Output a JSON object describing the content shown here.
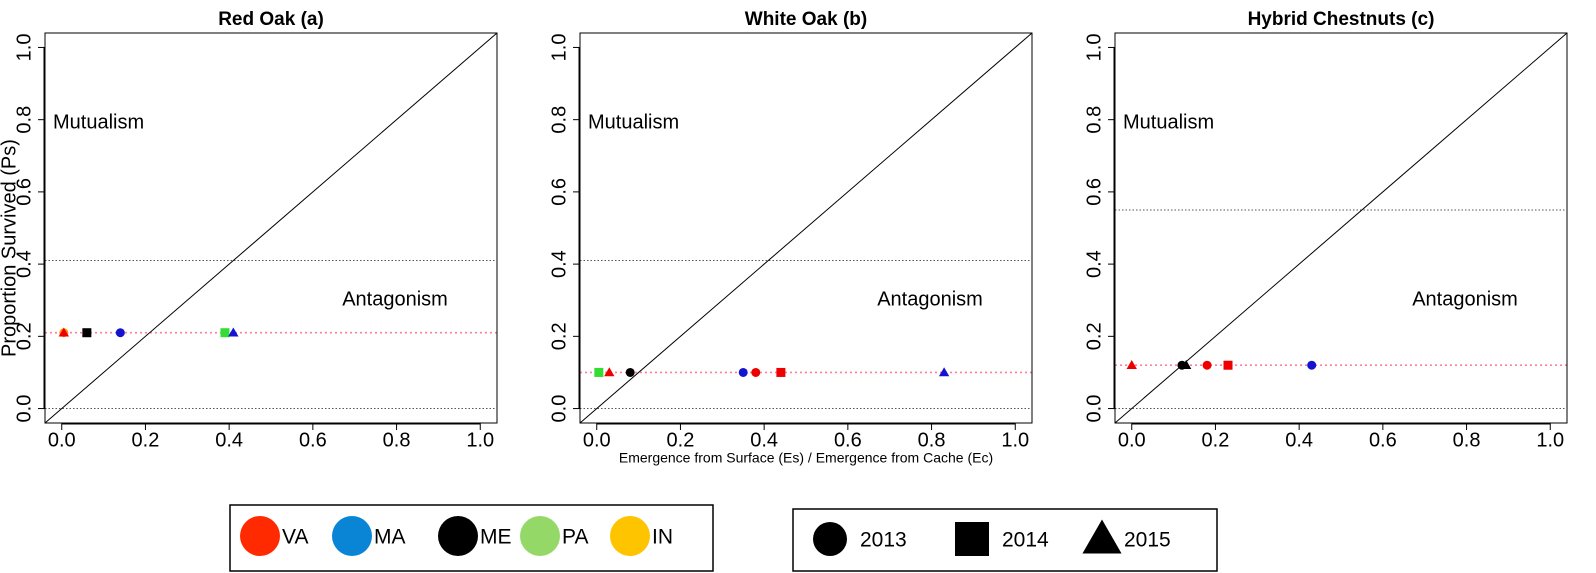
{
  "chart_data": [
    {
      "type": "scatter",
      "title": "Red Oak (a)",
      "ylabel": "Proportion Survived (Ps)",
      "annotations": [
        "Mutualism",
        "Antagonism"
      ],
      "xlim": [
        -0.04,
        1.04
      ],
      "ylim": [
        -0.04,
        1.04
      ],
      "xticks": [
        {
          "value": 0,
          "label": "0.0"
        },
        0.2,
        0.4,
        0.6,
        0.8,
        {
          "value": 1,
          "label": "1.0"
        }
      ],
      "yticks": [
        {
          "value": 0,
          "label": "0.0"
        },
        0.2,
        0.4,
        0.6,
        0.8,
        {
          "value": 1,
          "label": "1.0"
        }
      ],
      "hlines": [
        0,
        0.41
      ],
      "mean_line": 0.21,
      "series": [
        {
          "color": "#ff9900",
          "marker": "circle",
          "x": [
            0.005
          ],
          "y": [
            0.21
          ]
        },
        {
          "color": "#ee0000",
          "marker": "triangle",
          "x": [
            0.005
          ],
          "y": [
            0.21
          ]
        },
        {
          "color": "#000000",
          "marker": "square",
          "x": [
            0.06
          ],
          "y": [
            0.21
          ]
        },
        {
          "color": "#1414d0",
          "marker": "circle",
          "x": [
            0.14
          ],
          "y": [
            0.21
          ]
        },
        {
          "color": "#33dd33",
          "marker": "square",
          "x": [
            0.39
          ],
          "y": [
            0.21
          ]
        },
        {
          "color": "#1414d0",
          "marker": "triangle",
          "x": [
            0.41
          ],
          "y": [
            0.21
          ]
        }
      ]
    },
    {
      "type": "scatter",
      "title": "White Oak (b)",
      "xlabel": "Emergence from Surface (Es) / Emergence from Cache (Ec)",
      "annotations": [
        "Mutualism",
        "Antagonism"
      ],
      "xlim": [
        -0.04,
        1.04
      ],
      "ylim": [
        -0.04,
        1.04
      ],
      "xticks": [
        {
          "value": 0,
          "label": "0.0"
        },
        0.2,
        0.4,
        0.6,
        0.8,
        {
          "value": 1,
          "label": "1.0"
        }
      ],
      "yticks": [
        {
          "value": 0,
          "label": "0.0"
        },
        0.2,
        0.4,
        0.6,
        0.8,
        {
          "value": 1,
          "label": "1.0"
        }
      ],
      "hlines": [
        0,
        0.41
      ],
      "mean_line": 0.1,
      "series": [
        {
          "color": "#33dd33",
          "marker": "square",
          "x": [
            0.005
          ],
          "y": [
            0.1
          ]
        },
        {
          "color": "#ee0000",
          "marker": "triangle",
          "x": [
            0.03
          ],
          "y": [
            0.1
          ]
        },
        {
          "color": "#000000",
          "marker": "circle",
          "x": [
            0.08
          ],
          "y": [
            0.1
          ]
        },
        {
          "color": "#1414d0",
          "marker": "circle",
          "x": [
            0.35
          ],
          "y": [
            0.1
          ]
        },
        {
          "color": "#ee0000",
          "marker": "circle",
          "x": [
            0.38
          ],
          "y": [
            0.1
          ]
        },
        {
          "color": "#ee0000",
          "marker": "square",
          "x": [
            0.44
          ],
          "y": [
            0.1
          ]
        },
        {
          "color": "#1414d0",
          "marker": "triangle",
          "x": [
            0.83
          ],
          "y": [
            0.1
          ]
        }
      ]
    },
    {
      "type": "scatter",
      "title": "Hybrid Chestnuts (c)",
      "annotations": [
        "Mutualism",
        "Antagonism"
      ],
      "xlim": [
        -0.04,
        1.04
      ],
      "ylim": [
        -0.04,
        1.04
      ],
      "xticks": [
        {
          "value": 0,
          "label": "0.0"
        },
        0.2,
        0.4,
        0.6,
        0.8,
        {
          "value": 1,
          "label": "1.0"
        }
      ],
      "yticks": [
        {
          "value": 0,
          "label": "0.0"
        },
        0.2,
        0.4,
        0.6,
        0.8,
        {
          "value": 1,
          "label": "1.0"
        }
      ],
      "hlines": [
        0,
        0.55
      ],
      "mean_line": 0.12,
      "series": [
        {
          "color": "#ee0000",
          "marker": "triangle",
          "x": [
            0.0
          ],
          "y": [
            0.12
          ]
        },
        {
          "color": "#000000",
          "marker": "circle",
          "x": [
            0.12
          ],
          "y": [
            0.12
          ]
        },
        {
          "color": "#000000",
          "marker": "triangle",
          "x": [
            0.13
          ],
          "y": [
            0.12
          ]
        },
        {
          "color": "#ee0000",
          "marker": "circle",
          "x": [
            0.18
          ],
          "y": [
            0.12
          ]
        },
        {
          "color": "#ee0000",
          "marker": "square",
          "x": [
            0.23
          ],
          "y": [
            0.12
          ]
        },
        {
          "color": "#1414d0",
          "marker": "circle",
          "x": [
            0.43
          ],
          "y": [
            0.12
          ]
        }
      ]
    }
  ],
  "legend_sites": [
    {
      "name": "VA",
      "color": "#ff2a00"
    },
    {
      "name": "MA",
      "color": "#0a84d4"
    },
    {
      "name": "ME",
      "color": "#000000"
    },
    {
      "name": "PA",
      "color": "#94d868"
    },
    {
      "name": "IN",
      "color": "#ffc400"
    }
  ],
  "legend_years": [
    {
      "name": "2013",
      "marker": "circle"
    },
    {
      "name": "2014",
      "marker": "square"
    },
    {
      "name": "2015",
      "marker": "triangle"
    }
  ]
}
